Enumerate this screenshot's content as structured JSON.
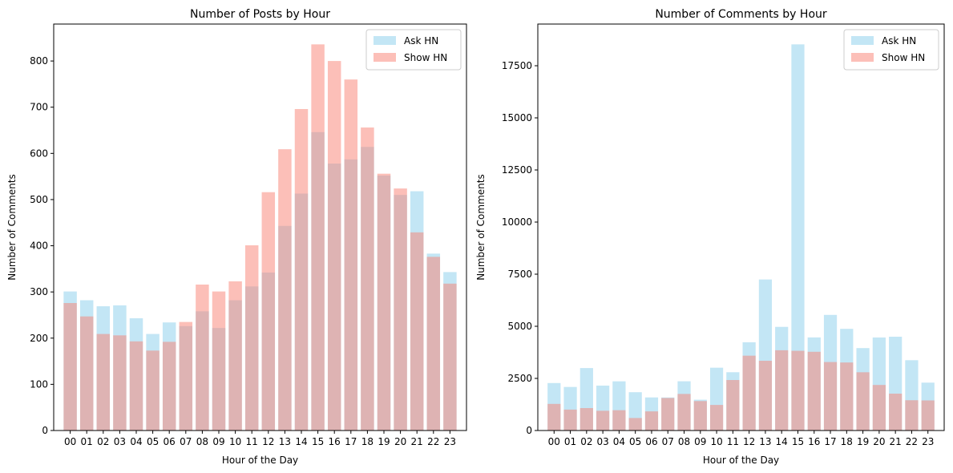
{
  "colors": {
    "ask": "#87ceeb",
    "show": "#fa8072",
    "ask_opacity": 0.5,
    "show_opacity": 0.5
  },
  "chart_data": [
    {
      "type": "bar",
      "title": "Number of Posts by Hour",
      "xlabel": "Hour of the Day",
      "ylabel": "Number of Comments",
      "ylim": [
        0,
        880
      ],
      "yticks": [
        0,
        100,
        200,
        300,
        400,
        500,
        600,
        700,
        800
      ],
      "legend_position": "upper-right",
      "grid": false,
      "categories": [
        "00",
        "01",
        "02",
        "03",
        "04",
        "05",
        "06",
        "07",
        "08",
        "09",
        "10",
        "11",
        "12",
        "13",
        "14",
        "15",
        "16",
        "17",
        "18",
        "19",
        "20",
        "21",
        "22",
        "23"
      ],
      "series": [
        {
          "name": "Ask HN",
          "color": "#87ceeb",
          "values": [
            301,
            282,
            269,
            271,
            243,
            209,
            234,
            226,
            258,
            222,
            282,
            312,
            342,
            443,
            513,
            646,
            578,
            587,
            614,
            552,
            510,
            518,
            383,
            343
          ]
        },
        {
          "name": "Show HN",
          "color": "#fa8072",
          "values": [
            276,
            247,
            209,
            206,
            193,
            173,
            192,
            235,
            316,
            301,
            323,
            401,
            516,
            609,
            696,
            836,
            800,
            760,
            656,
            556,
            524,
            429,
            376,
            318
          ]
        }
      ]
    },
    {
      "type": "bar",
      "title": "Number of Comments by Hour",
      "xlabel": "Hour of the Day",
      "ylabel": "Number of Comments",
      "ylim": [
        0,
        19500
      ],
      "yticks": [
        0,
        2500,
        5000,
        7500,
        10000,
        12500,
        15000,
        17500
      ],
      "legend_position": "upper-right",
      "grid": false,
      "categories": [
        "00",
        "01",
        "02",
        "03",
        "04",
        "05",
        "06",
        "07",
        "08",
        "09",
        "10",
        "11",
        "12",
        "13",
        "14",
        "15",
        "16",
        "17",
        "18",
        "19",
        "20",
        "21",
        "22",
        "23"
      ],
      "series": [
        {
          "name": "Ask HN",
          "color": "#87ceeb",
          "values": [
            2277,
            2089,
            2996,
            2154,
            2360,
            1838,
            1587,
            1585,
            2362,
            1477,
            3013,
            2797,
            4234,
            7245,
            4972,
            18525,
            4466,
            5547,
            4877,
            3954,
            4462,
            4500,
            3372,
            2297
          ]
        },
        {
          "name": "Show HN",
          "color": "#fa8072",
          "values": [
            1277,
            1004,
            1076,
            947,
            973,
            600,
            918,
            1560,
            1754,
            1412,
            1226,
            2422,
            3590,
            3345,
            3850,
            3824,
            3777,
            3285,
            3263,
            2794,
            2185,
            1769,
            1452,
            1443
          ]
        }
      ]
    }
  ]
}
